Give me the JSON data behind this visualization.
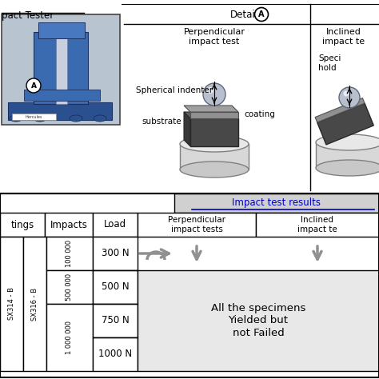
{
  "title_left": "pact Tester",
  "detail_label": "Detail",
  "circle_label": "A",
  "perp_title": "Perpendicular\nimpact test",
  "inclined_title": "Inclined\nimpact te",
  "spherical_indenter": "Spherical indenter",
  "substrate": "substrate",
  "coating": "coating",
  "specimen_holder": "Speci\nhold",
  "impact_results_title": "Impact test results",
  "perp_impact_tests": "Perpendicular\nimpact tests",
  "inclined_impact_tests": "Inclined\nimpact te",
  "load_label": "Load",
  "impacts_label": "Impacts",
  "coatings_label": "tings",
  "loads": [
    "300 N",
    "500 N",
    "750 N",
    "1000 N"
  ],
  "impacts_values": [
    "100 000",
    "500 000",
    "1 000 000"
  ],
  "coatings_values": [
    "SX314 - B",
    "SX316 - B"
  ],
  "result_text": "All the specimens\nYielded but\nnot Failed",
  "bg_color": "#ffffff",
  "table_bg": "#e8e8e8",
  "header_bg": "#d0d0d0",
  "border_color": "#000000",
  "text_color": "#000000",
  "gray_light": "#c8c8c8",
  "gray_mid": "#909090"
}
